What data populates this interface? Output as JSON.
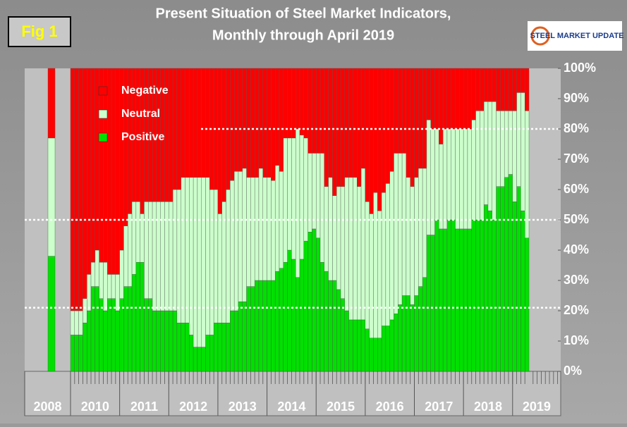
{
  "chart_data": {
    "type": "stacked-bar",
    "figure_label": "Fig 1",
    "title": [
      "Present Situation of Steel Market Indicators,",
      "Monthly through April 2019"
    ],
    "logo": "STEEL MARKET UPDATE",
    "categories": [
      "2008",
      "2010",
      null,
      null,
      null,
      null,
      null,
      null,
      null,
      null,
      null,
      null,
      null,
      "2011",
      null,
      null,
      null,
      null,
      null,
      null,
      null,
      null,
      null,
      null,
      null,
      "2012",
      null,
      null,
      null,
      null,
      null,
      null,
      null,
      null,
      null,
      null,
      null,
      "2013",
      null,
      null,
      null,
      null,
      null,
      null,
      null,
      null,
      null,
      null,
      null,
      "2014",
      null,
      null,
      null,
      null,
      null,
      null,
      null,
      null,
      null,
      null,
      null,
      "2015",
      null,
      null,
      null,
      null,
      null,
      null,
      null,
      null,
      null,
      null,
      null,
      "2016",
      null,
      null,
      null,
      null,
      null,
      null,
      null,
      null,
      null,
      null,
      null,
      "2017",
      null,
      null,
      null,
      null,
      null,
      null,
      null,
      null,
      null,
      null,
      null,
      "2018",
      null,
      null,
      null,
      null,
      null,
      null,
      null,
      null,
      null,
      null,
      null,
      "2019",
      null,
      null,
      null
    ],
    "series": [
      {
        "name": "Positive",
        "color": "#00e000",
        "values": [
          38,
          12,
          12,
          12,
          16,
          20,
          28,
          28,
          24,
          20,
          24,
          24,
          20,
          24,
          28,
          28,
          32,
          36,
          36,
          24,
          24,
          20,
          20,
          20,
          20,
          20,
          20,
          16,
          16,
          16,
          12,
          8,
          8,
          8,
          12,
          12,
          16,
          16,
          16,
          16,
          20,
          20,
          23,
          23,
          28,
          28,
          30,
          30,
          30,
          30,
          30,
          33,
          34,
          36,
          40,
          37,
          31,
          37,
          43,
          46,
          47,
          44,
          36,
          33,
          30,
          30,
          27,
          24,
          20,
          17,
          17,
          17,
          17,
          14,
          11,
          11,
          11,
          15,
          15,
          17,
          19,
          22,
          25,
          25,
          22,
          25,
          28,
          31,
          45,
          45,
          50,
          47,
          47,
          50,
          50,
          47,
          47,
          47,
          47,
          50,
          50,
          50,
          55,
          53,
          50,
          61,
          61,
          64,
          65,
          56,
          61,
          53,
          44
        ]
      },
      {
        "name": "Neutral",
        "color": "#ccffcc",
        "values": [
          39,
          8,
          8,
          8,
          8,
          12,
          8,
          12,
          12,
          16,
          8,
          8,
          12,
          16,
          20,
          24,
          24,
          20,
          16,
          32,
          32,
          36,
          36,
          36,
          36,
          36,
          40,
          44,
          48,
          48,
          52,
          56,
          56,
          56,
          52,
          48,
          44,
          36,
          40,
          44,
          43,
          46,
          43,
          44,
          36,
          36,
          34,
          37,
          34,
          34,
          33,
          35,
          32,
          41,
          37,
          40,
          49,
          41,
          34,
          26,
          25,
          28,
          36,
          28,
          34,
          28,
          34,
          37,
          44,
          47,
          47,
          44,
          50,
          42,
          41,
          48,
          42,
          44,
          47,
          49,
          53,
          50,
          47,
          39,
          39,
          39,
          39,
          36,
          38,
          35,
          30,
          28,
          33,
          30,
          30,
          33,
          33,
          33,
          33,
          33,
          36,
          36,
          34,
          36,
          39,
          25,
          25,
          22,
          21,
          30,
          31,
          39,
          42
        ]
      },
      {
        "name": "Negative",
        "color": "#ff0000",
        "values": [
          23,
          80,
          80,
          80,
          76,
          68,
          64,
          60,
          64,
          64,
          68,
          68,
          68,
          60,
          52,
          48,
          44,
          44,
          48,
          44,
          44,
          44,
          44,
          44,
          44,
          44,
          40,
          40,
          36,
          36,
          36,
          36,
          36,
          36,
          36,
          40,
          40,
          48,
          44,
          40,
          37,
          34,
          34,
          33,
          36,
          36,
          36,
          33,
          36,
          36,
          37,
          32,
          34,
          23,
          23,
          23,
          20,
          22,
          23,
          28,
          28,
          28,
          28,
          39,
          36,
          42,
          39,
          39,
          36,
          36,
          36,
          39,
          33,
          44,
          48,
          41,
          47,
          41,
          38,
          34,
          28,
          28,
          28,
          36,
          39,
          36,
          33,
          33,
          17,
          20,
          20,
          25,
          20,
          20,
          20,
          20,
          20,
          20,
          20,
          17,
          14,
          14,
          11,
          11,
          11,
          14,
          14,
          14,
          14,
          14,
          8,
          8,
          14
        ]
      }
    ],
    "ylim": [
      0,
      100
    ],
    "yticks": [
      {
        "value": 0,
        "label": "0%"
      },
      {
        "value": 10,
        "label": "10%"
      },
      {
        "value": 20,
        "label": "20%"
      },
      {
        "value": 30,
        "label": "30%"
      },
      {
        "value": 40,
        "label": "40%"
      },
      {
        "value": 50,
        "label": "50%"
      },
      {
        "value": 60,
        "label": "60%"
      },
      {
        "value": 70,
        "label": "70%"
      },
      {
        "value": 80,
        "label": "80%"
      },
      {
        "value": 90,
        "label": "90%"
      },
      {
        "value": 100,
        "label": "100%"
      }
    ],
    "reference_lines": [
      80,
      50,
      21
    ],
    "legend": "upper left"
  }
}
